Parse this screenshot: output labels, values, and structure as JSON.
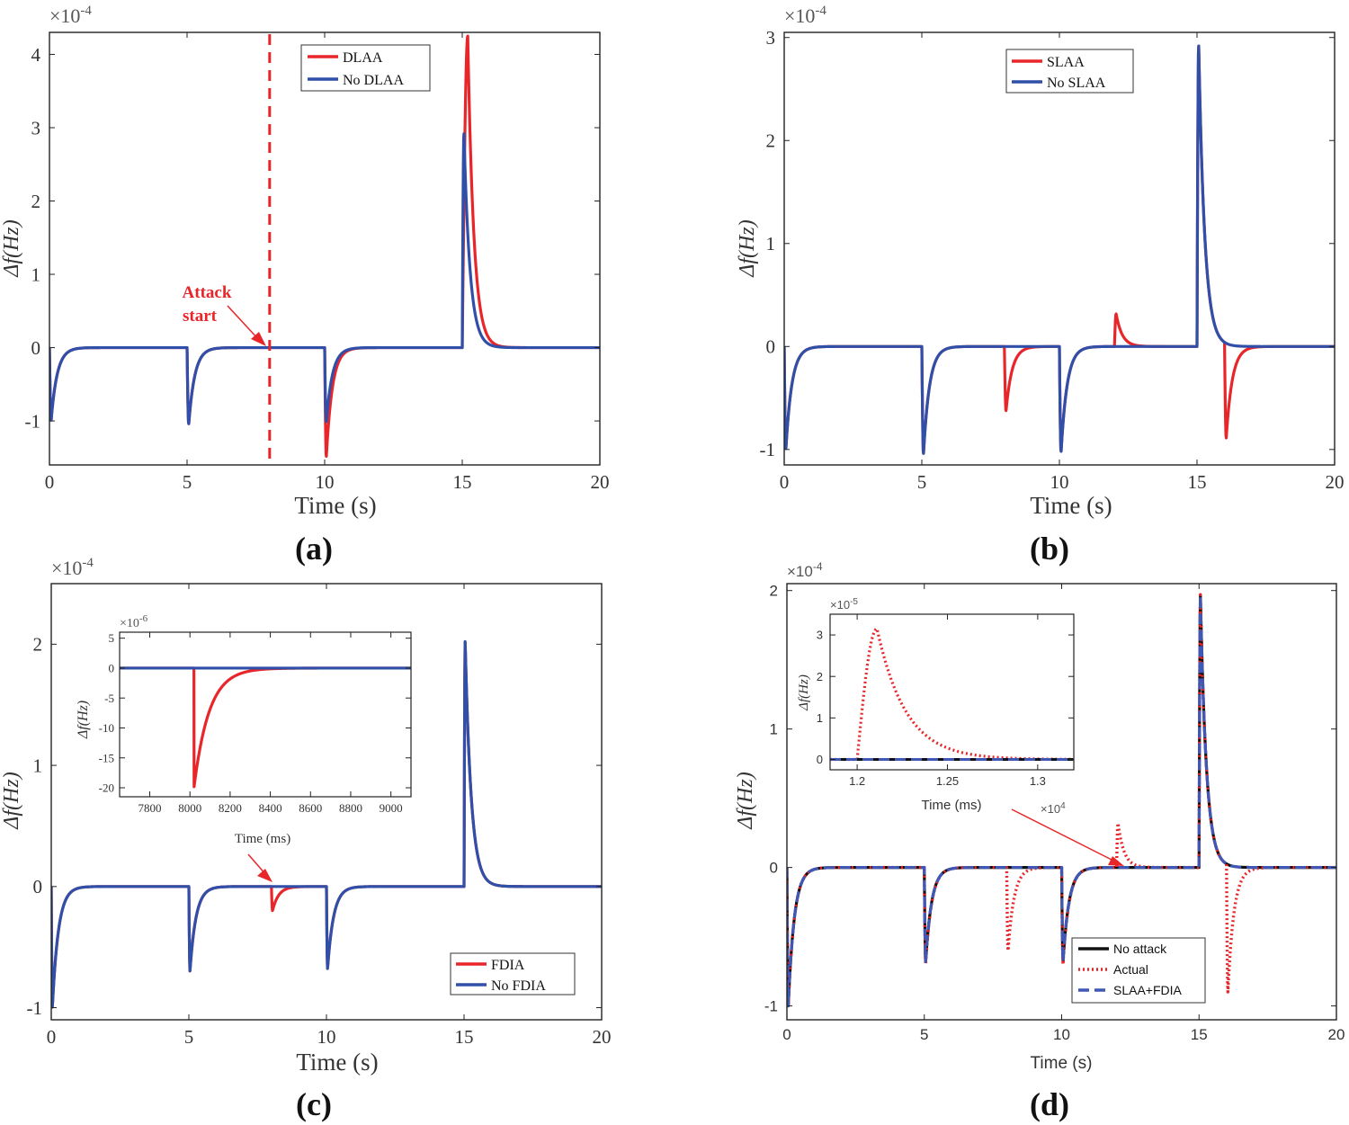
{
  "panels": [
    {
      "id": "a",
      "label": "(a)",
      "xlabel": "Time (s)",
      "ylabel": "Δf(Hz)",
      "exponent": "×10",
      "exponent_power": "-4",
      "xlim": [
        0,
        20
      ],
      "ylim": [
        -1.6,
        4.3
      ],
      "xticks": [
        0,
        5,
        10,
        15,
        20
      ],
      "xtick_labels": [
        "0",
        "5",
        "10",
        "15",
        "20"
      ],
      "yticks": [
        -1,
        0,
        1,
        2,
        3,
        4
      ],
      "ytick_labels": [
        "-1",
        "0",
        "1",
        "2",
        "3",
        "4"
      ],
      "legend": [
        "DLAA",
        "No DLAA"
      ],
      "annotation": [
        "Attack",
        "start"
      ],
      "attack_line_x": 8,
      "series": [
        {
          "name": "DLAA",
          "color": "#e8262a",
          "events": [
            {
              "t": 0,
              "a": -1
            },
            {
              "t": 5,
              "a": -1.05
            },
            {
              "t": 10,
              "a": -1.5
            },
            {
              "t": 15,
              "a": 4.25,
              "rise": 0.2
            }
          ]
        },
        {
          "name": "No DLAA",
          "color": "#2f4fa8",
          "events": [
            {
              "t": 0,
              "a": -1
            },
            {
              "t": 5,
              "a": -1.05
            },
            {
              "t": 10,
              "a": -1.02
            },
            {
              "t": 15,
              "a": 2.95
            }
          ]
        }
      ]
    },
    {
      "id": "b",
      "label": "(b)",
      "xlabel": "Time (s)",
      "ylabel": "Δf(Hz)",
      "exponent": "×10",
      "exponent_power": "-4",
      "xlim": [
        0,
        20
      ],
      "ylim": [
        -1.15,
        3.05
      ],
      "xticks": [
        0,
        5,
        10,
        15,
        20
      ],
      "xtick_labels": [
        "0",
        "5",
        "10",
        "15",
        "20"
      ],
      "yticks": [
        -1,
        0,
        1,
        2,
        3
      ],
      "ytick_labels": [
        "-1",
        "0",
        "1",
        "2",
        "3"
      ],
      "legend": [
        "SLAA",
        "No SLAA"
      ],
      "series": [
        {
          "name": "SLAA",
          "color": "#e8262a",
          "events": [
            {
              "t": 0,
              "a": -1
            },
            {
              "t": 5,
              "a": -1.05
            },
            {
              "t": 8,
              "a": -0.63
            },
            {
              "t": 10,
              "a": -1.03
            },
            {
              "t": 12,
              "a": 0.32
            },
            {
              "t": 15,
              "a": 2.95
            },
            {
              "t": 16,
              "a": -0.93
            }
          ]
        },
        {
          "name": "No SLAA",
          "color": "#2f4fa8",
          "events": [
            {
              "t": 0,
              "a": -1
            },
            {
              "t": 5,
              "a": -1.05
            },
            {
              "t": 10,
              "a": -1.03
            },
            {
              "t": 15,
              "a": 2.95
            }
          ]
        }
      ]
    },
    {
      "id": "c",
      "label": "(c)",
      "xlabel": "Time (s)",
      "ylabel": "Δf(Hz)",
      "exponent": "×10",
      "exponent_power": "-4",
      "xlim": [
        0,
        20
      ],
      "ylim": [
        -1.1,
        2.5
      ],
      "xticks": [
        0,
        5,
        10,
        15,
        20
      ],
      "xtick_labels": [
        "0",
        "5",
        "10",
        "15",
        "20"
      ],
      "yticks": [
        -1,
        0,
        1,
        2
      ],
      "ytick_labels": [
        "-1",
        "0",
        "1",
        "2"
      ],
      "legend": [
        "FDIA",
        "No FDIA"
      ],
      "series": [
        {
          "name": "FDIA",
          "color": "#e8262a",
          "events": [
            {
              "t": 0,
              "a": -1
            },
            {
              "t": 5,
              "a": -0.7
            },
            {
              "t": 8,
              "a": -0.2
            },
            {
              "t": 10,
              "a": -0.68
            },
            {
              "t": 15,
              "a": 2.03
            }
          ]
        },
        {
          "name": "No FDIA",
          "color": "#2f4fa8",
          "events": [
            {
              "t": 0,
              "a": -1
            },
            {
              "t": 5,
              "a": -0.7
            },
            {
              "t": 10,
              "a": -0.68
            },
            {
              "t": 15,
              "a": 2.03
            }
          ]
        }
      ],
      "inset": {
        "xlabel": "Time (ms)",
        "ylabel": "Δf(Hz)",
        "exponent": "×10",
        "exponent_power": "-6",
        "xlim": [
          7650,
          9100
        ],
        "ylim": [
          -21.5,
          6
        ],
        "xticks": [
          7800,
          8000,
          8200,
          8400,
          8600,
          8800,
          9000
        ],
        "xtick_labels": [
          "7800",
          "8000",
          "8200",
          "8400",
          "8600",
          "8800",
          "9000"
        ],
        "yticks": [
          5,
          0,
          -5,
          -10,
          -15,
          -20
        ],
        "ytick_labels": [
          "5",
          "0",
          "-5",
          "-10",
          "-15",
          "-20"
        ],
        "series": [
          {
            "name": "FDIA",
            "color": "#e8262a",
            "events": [
              {
                "t": 8020,
                "a": -20,
                "tau": 75
              }
            ]
          },
          {
            "name": "No FDIA",
            "color": "#2f4fa8",
            "events": []
          }
        ]
      }
    },
    {
      "id": "d",
      "label": "(d)",
      "xlabel": "Time (s)",
      "ylabel": "Δf(Hz)",
      "exponent": "×10",
      "exponent_power": "-4",
      "xlim": [
        0,
        20
      ],
      "ylim": [
        -1.1,
        2.05
      ],
      "xticks": [
        0,
        5,
        10,
        15,
        20
      ],
      "xtick_labels": [
        "0",
        "5",
        "10",
        "15",
        "20"
      ],
      "yticks": [
        -1,
        0,
        1,
        2
      ],
      "ytick_labels": [
        "-1",
        "0",
        "1",
        "2"
      ],
      "legend": [
        "No attack",
        "Actual",
        "SLAA+FDIA"
      ],
      "series": [
        {
          "name": "No attack",
          "color": "#111111",
          "events": [
            {
              "t": 0,
              "a": -1
            },
            {
              "t": 5,
              "a": -0.68
            },
            {
              "t": 10,
              "a": -0.68
            },
            {
              "t": 15,
              "a": 1.97
            }
          ]
        },
        {
          "name": "Actual",
          "color": "#e8262a",
          "events": [
            {
              "t": 0,
              "a": -1
            },
            {
              "t": 5,
              "a": -0.7
            },
            {
              "t": 8,
              "a": -0.6
            },
            {
              "t": 10,
              "a": -0.7
            },
            {
              "t": 12,
              "a": 0.32
            },
            {
              "t": 15,
              "a": 1.97
            },
            {
              "t": 16,
              "a": -0.92
            }
          ]
        },
        {
          "name": "SLAA+FDIA",
          "color": "#3f57b5",
          "events": [
            {
              "t": 0,
              "a": -1
            },
            {
              "t": 5,
              "a": -0.68
            },
            {
              "t": 10,
              "a": -0.68
            },
            {
              "t": 15,
              "a": 1.97
            }
          ]
        }
      ],
      "inset": {
        "xlabel": "Time (ms)",
        "ylabel": "Δf(Hz)",
        "exponent": "×10",
        "exponent_power": "-5",
        "x_exponent": "×10",
        "x_exponent_power": "4",
        "xlim": [
          1.185,
          1.32
        ],
        "ylim": [
          -0.25,
          3.5
        ],
        "xticks": [
          1.2,
          1.25,
          1.3
        ],
        "xtick_labels": [
          "1.2",
          "1.25",
          "1.3"
        ],
        "yticks": [
          0,
          1,
          2,
          3
        ],
        "ytick_labels": [
          "0",
          "1",
          "2",
          "3"
        ],
        "series": [
          {
            "name": "Actual",
            "color": "#e8262a",
            "events": [
              {
                "t": 1.2,
                "a": 3.15,
                "rise": 0.011,
                "tau": 0.016
              }
            ]
          },
          {
            "name": "No attack",
            "color": "#111111",
            "events": []
          },
          {
            "name": "SLAA+FDIA",
            "color": "#3f57b5",
            "events": []
          }
        ]
      }
    }
  ],
  "chart_data": [
    {
      "type": "line",
      "title": "(a)",
      "xlabel": "Time (s)",
      "ylabel": "Δf(Hz) ×10^-4",
      "xlim": [
        0,
        20
      ],
      "ylim": [
        -1.6,
        4.3
      ],
      "series": [
        {
          "name": "DLAA",
          "x": [
            0,
            5,
            10,
            15
          ],
          "peak_values": [
            -1,
            -1.05,
            -1.5,
            4.25
          ]
        },
        {
          "name": "No DLAA",
          "x": [
            0,
            5,
            10,
            15
          ],
          "peak_values": [
            -1,
            -1.05,
            -1.02,
            2.95
          ]
        }
      ],
      "annotations": [
        "Attack start at t = 8 s"
      ]
    },
    {
      "type": "line",
      "title": "(b)",
      "xlabel": "Time (s)",
      "ylabel": "Δf(Hz) ×10^-4",
      "xlim": [
        0,
        20
      ],
      "ylim": [
        -1.15,
        3.05
      ],
      "series": [
        {
          "name": "SLAA",
          "x": [
            0,
            5,
            8,
            10,
            12,
            15,
            16
          ],
          "peak_values": [
            -1,
            -1.05,
            -0.63,
            -1.03,
            0.32,
            2.95,
            -0.93
          ]
        },
        {
          "name": "No SLAA",
          "x": [
            0,
            5,
            10,
            15
          ],
          "peak_values": [
            -1,
            -1.05,
            -1.03,
            2.95
          ]
        }
      ]
    },
    {
      "type": "line",
      "title": "(c)",
      "xlabel": "Time (s)",
      "ylabel": "Δf(Hz) ×10^-4",
      "xlim": [
        0,
        20
      ],
      "ylim": [
        -1.1,
        2.5
      ],
      "series": [
        {
          "name": "FDIA",
          "x": [
            0,
            5,
            8,
            10,
            15
          ],
          "peak_values": [
            -1,
            -0.7,
            -0.2,
            -0.68,
            2.03
          ]
        },
        {
          "name": "No FDIA",
          "x": [
            0,
            5,
            10,
            15
          ],
          "peak_values": [
            -1,
            -0.7,
            -0.68,
            2.03
          ]
        }
      ],
      "inset": {
        "xlabel": "Time (ms)",
        "ylabel": "Δf(Hz) ×10^-6",
        "xlim": [
          7650,
          9100
        ],
        "ylim": [
          -21.5,
          6
        ],
        "series": [
          {
            "name": "FDIA",
            "x": [
              8020
            ],
            "peak_values": [
              -20
            ]
          }
        ]
      }
    },
    {
      "type": "line",
      "title": "(d)",
      "xlabel": "Time (s)",
      "ylabel": "Δf(Hz) ×10^-4",
      "xlim": [
        0,
        20
      ],
      "ylim": [
        -1.1,
        2.05
      ],
      "series": [
        {
          "name": "No attack",
          "x": [
            0,
            5,
            10,
            15
          ],
          "peak_values": [
            -1,
            -0.68,
            -0.68,
            1.97
          ]
        },
        {
          "name": "Actual",
          "x": [
            0,
            5,
            8,
            10,
            12,
            15,
            16
          ],
          "peak_values": [
            -1,
            -0.7,
            -0.6,
            -0.7,
            0.32,
            1.97,
            -0.92
          ]
        },
        {
          "name": "SLAA+FDIA",
          "x": [
            0,
            5,
            10,
            15
          ],
          "peak_values": [
            -1,
            -0.68,
            -0.68,
            1.97
          ]
        }
      ],
      "inset": {
        "xlabel": "Time (ms) ×10^4",
        "ylabel": "Δf(Hz) ×10^-5",
        "xlim": [
          1.185,
          1.32
        ],
        "ylim": [
          -0.25,
          3.5
        ],
        "series": [
          {
            "name": "Actual",
            "x": [
              1.21
            ],
            "peak_values": [
              3.15
            ]
          }
        ]
      }
    }
  ]
}
